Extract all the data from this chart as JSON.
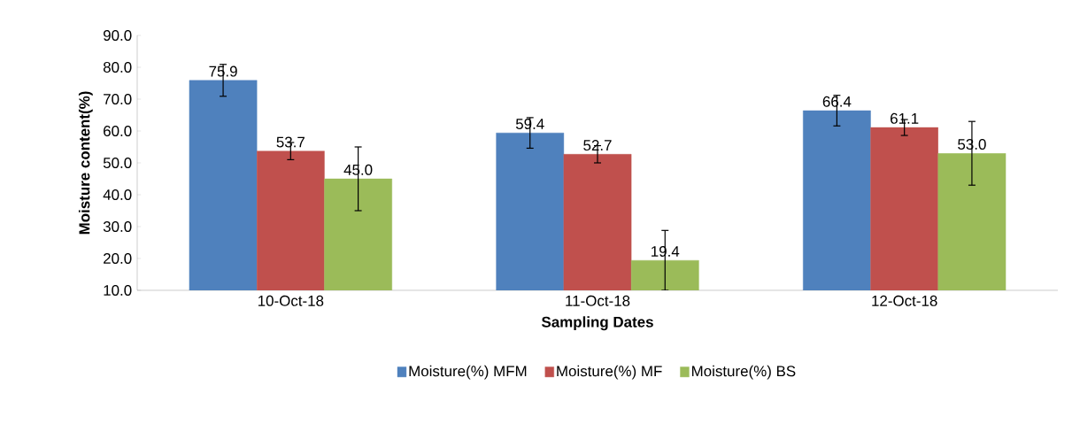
{
  "chart_data": {
    "type": "bar",
    "xlabel": "Sampling Dates",
    "ylabel": "Moisture content(%)",
    "categories": [
      "10-Oct-18",
      "11-Oct-18",
      "12-Oct-18"
    ],
    "series": [
      {
        "name": "Moisture(%) MFM",
        "color": "#4f81bd",
        "values": [
          75.9,
          59.4,
          66.4
        ],
        "errors": [
          5,
          4.8,
          4.8
        ],
        "value_labels": [
          "75.9",
          "59.4",
          "66.4"
        ]
      },
      {
        "name": "Moisture(%) MF",
        "color": "#c0504d",
        "values": [
          53.7,
          52.7,
          61.1
        ],
        "errors": [
          2.7,
          2.7,
          2.5
        ],
        "value_labels": [
          "53.7",
          "52.7",
          "61.1"
        ]
      },
      {
        "name": "Moisture(%) BS",
        "color": "#9bbb59",
        "values": [
          45.0,
          19.4,
          53.0
        ],
        "errors": [
          10,
          9.4,
          10
        ],
        "value_labels": [
          "45.0",
          "19.4",
          "53.0"
        ]
      }
    ],
    "ylim": [
      10,
      90
    ],
    "yticks": [
      {
        "value": 10,
        "label": "10.0"
      },
      {
        "value": 20,
        "label": "20.0"
      },
      {
        "value": 30,
        "label": "30.0"
      },
      {
        "value": 40,
        "label": "40.0"
      },
      {
        "value": 50,
        "label": "50.0"
      },
      {
        "value": 60,
        "label": "60.0"
      },
      {
        "value": 70,
        "label": "70.0"
      },
      {
        "value": 80,
        "label": "80.0"
      },
      {
        "value": 90,
        "label": "90.0"
      }
    ],
    "grid": false,
    "legend": "bottom"
  }
}
